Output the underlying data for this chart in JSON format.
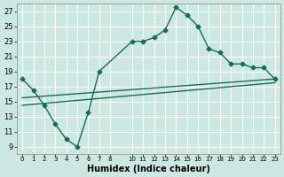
{
  "title": "",
  "xlabel": "Humidex (Indice chaleur)",
  "bg_color": "#cce8e0",
  "grid_color": "#ffffff",
  "line_color": "#1a6b5a",
  "xlim": [
    -0.5,
    23.5
  ],
  "ylim": [
    8.0,
    28.0
  ],
  "yticks": [
    9,
    11,
    13,
    15,
    17,
    19,
    21,
    23,
    25,
    27
  ],
  "xtick_positions": [
    0,
    1,
    2,
    3,
    4,
    5,
    6,
    7,
    8,
    10,
    11,
    12,
    13,
    14,
    15,
    16,
    17,
    18,
    19,
    20,
    21,
    22,
    23
  ],
  "xtick_labels": [
    "0",
    "1",
    "2",
    "3",
    "4",
    "5",
    "6",
    "7",
    "8",
    "10",
    "11",
    "12",
    "13",
    "14",
    "15",
    "16",
    "17",
    "18",
    "19",
    "20",
    "21",
    "22",
    "23"
  ],
  "main_line_x": [
    0,
    1,
    2,
    3,
    4,
    5,
    6,
    7,
    10,
    11,
    12,
    13,
    14,
    15,
    16,
    17,
    18,
    19,
    20,
    21,
    22,
    23
  ],
  "main_line_y": [
    18,
    16.5,
    14.5,
    12,
    10,
    9,
    13.5,
    19,
    23,
    23,
    23.5,
    24.5,
    27.5,
    26.5,
    25,
    22,
    21.5,
    20,
    20,
    19.5,
    19.5,
    18
  ],
  "trend1_x": [
    0,
    23
  ],
  "trend1_y": [
    15.5,
    18.0
  ],
  "trend2_x": [
    0,
    23
  ],
  "trend2_y": [
    14.5,
    17.5
  ],
  "marker": "D",
  "marker_size": 2.5,
  "line_width": 1.0
}
